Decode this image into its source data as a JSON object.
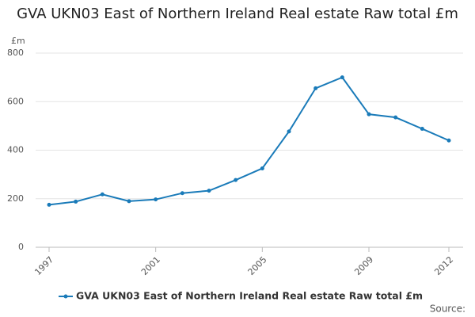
{
  "chart_data": {
    "type": "line",
    "title": "GVA UKN03 East of Northern Ireland Real estate Raw total £m",
    "y_label": "£m",
    "source": "Source:",
    "x": [
      1997,
      1998,
      1999,
      2000,
      2001,
      2002,
      2003,
      2004,
      2005,
      2006,
      2007,
      2008,
      2009,
      2010,
      2011,
      2012
    ],
    "series": [
      {
        "name": "GVA UKN03 East of Northern Ireland Real estate Raw total £m",
        "color": "#1a7bb9",
        "values": [
          175,
          188,
          218,
          190,
          197,
          223,
          233,
          277,
          325,
          477,
          655,
          700,
          548,
          535,
          488,
          440
        ]
      }
    ],
    "xlim": [
      1997,
      2012
    ],
    "xticks": [
      1997,
      2001,
      2005,
      2009,
      2012
    ],
    "ylim": [
      0,
      800
    ],
    "yticks": [
      0,
      200,
      400,
      600,
      800
    ],
    "grid": true
  }
}
